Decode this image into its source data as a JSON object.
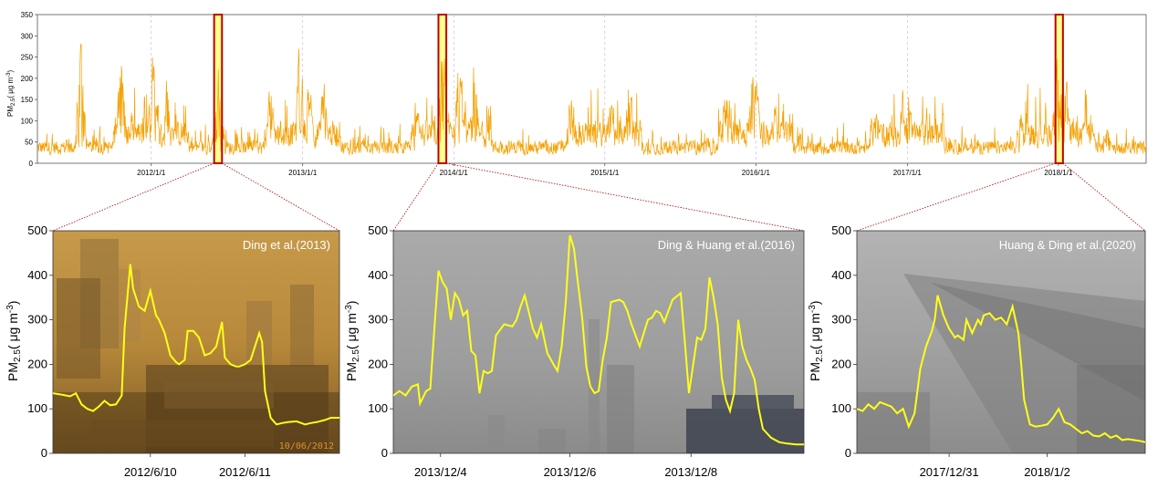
{
  "colors": {
    "series_top": "#f5a000",
    "series_zoom": "#ffff1a",
    "highlight_fill": "#ffff80",
    "highlight_stroke": "#c00000",
    "connector": "#b00000",
    "gridline": "#b8b8e0"
  },
  "chart_data": [
    {
      "type": "line",
      "ylabel": "PM2.5( μg m-3)",
      "ylabel_main": "PM",
      "ylabel_sub": "2.5",
      "ylabel_unit": "( μg m",
      "ylabel_sup": "-3",
      "ylabel_close": ")",
      "ylim": [
        0,
        350
      ],
      "yticks": [
        "0",
        "50",
        "100",
        "150",
        "200",
        "250",
        "300",
        "350"
      ],
      "xlim": [
        "2011-04-01",
        "2018-08-01"
      ],
      "xtick_labels": [
        "2012/1/1",
        "2013/1/1",
        "2014/1/1",
        "2015/1/1",
        "2016/1/1",
        "2017/1/1",
        "2018/1/1"
      ],
      "xticks": [
        "2012-01-01",
        "2013-01-01",
        "2014-01-01",
        "2015-01-01",
        "2016-01-01",
        "2017-01-01",
        "2018-01-01"
      ],
      "grid": "vertical dashed at year starts",
      "highlight_windows": [
        [
          "2012-06-01",
          "2012-06-20"
        ],
        [
          "2013-11-25",
          "2013-12-14"
        ],
        [
          "2017-12-25",
          "2018-01-12"
        ]
      ],
      "peaks": [
        [
          "2011-07-15",
          295
        ],
        [
          "2011-10-20",
          285
        ],
        [
          "2012-01-05",
          280
        ],
        [
          "2012-02-10",
          220
        ],
        [
          "2012-06-10",
          250
        ],
        [
          "2012-10-15",
          200
        ],
        [
          "2012-12-25",
          300
        ],
        [
          "2013-01-15",
          220
        ],
        [
          "2013-02-20",
          210
        ],
        [
          "2013-10-01",
          170
        ],
        [
          "2013-12-06",
          300
        ],
        [
          "2014-01-15",
          280
        ],
        [
          "2014-02-20",
          250
        ],
        [
          "2014-10-10",
          200
        ],
        [
          "2015-01-15",
          160
        ],
        [
          "2015-03-01",
          200
        ],
        [
          "2015-10-20",
          190
        ],
        [
          "2015-12-25",
          230
        ],
        [
          "2016-01-01",
          210
        ],
        [
          "2016-02-15",
          160
        ],
        [
          "2016-10-20",
          150
        ],
        [
          "2016-12-20",
          180
        ],
        [
          "2017-01-05",
          180
        ],
        [
          "2017-10-01",
          130
        ],
        [
          "2018-01-01",
          270
        ],
        [
          "2018-01-20",
          200
        ],
        [
          "2018-03-01",
          110
        ],
        [
          "2018-05-01",
          100
        ]
      ]
    },
    {
      "type": "line",
      "annotation": "Ding et al.(2013)",
      "photo_stamp": "10/06/2012",
      "ylim": [
        0,
        500
      ],
      "yticks": [
        "0",
        "100",
        "200",
        "300",
        "400",
        "500"
      ],
      "xlim": [
        0,
        1
      ],
      "xtick_labels": [
        "2012/6/10",
        "2012/6/11"
      ],
      "xticks": [
        0.34,
        0.67
      ],
      "ylabel_main": "PM",
      "ylabel_sub": "2.5",
      "ylabel_unit": "( μg m",
      "ylabel_sup": "-3",
      "ylabel_close": ")",
      "x": [
        0,
        0.03,
        0.06,
        0.08,
        0.1,
        0.12,
        0.14,
        0.16,
        0.18,
        0.2,
        0.22,
        0.24,
        0.25,
        0.27,
        0.28,
        0.3,
        0.32,
        0.34,
        0.36,
        0.37,
        0.39,
        0.41,
        0.43,
        0.44,
        0.46,
        0.47,
        0.49,
        0.51,
        0.53,
        0.55,
        0.57,
        0.59,
        0.6,
        0.62,
        0.64,
        0.65,
        0.67,
        0.69,
        0.7,
        0.72,
        0.73,
        0.74,
        0.76,
        0.78,
        0.8,
        0.82,
        0.85,
        0.88,
        0.9,
        0.92,
        0.95,
        0.97,
        1.0
      ],
      "y": [
        135,
        132,
        128,
        135,
        110,
        100,
        95,
        105,
        118,
        108,
        110,
        130,
        280,
        425,
        370,
        330,
        320,
        365,
        310,
        300,
        270,
        220,
        205,
        200,
        210,
        275,
        275,
        260,
        220,
        225,
        240,
        295,
        215,
        200,
        195,
        195,
        200,
        210,
        230,
        270,
        250,
        140,
        80,
        65,
        68,
        70,
        72,
        65,
        68,
        70,
        75,
        80,
        80
      ]
    },
    {
      "type": "line",
      "annotation": "Ding & Huang et al.(2016)",
      "ylim": [
        0,
        500
      ],
      "yticks": [
        "0",
        "100",
        "200",
        "300",
        "400",
        "500"
      ],
      "xlim": [
        0,
        1
      ],
      "xtick_labels": [
        "2013/12/4",
        "2013/12/6",
        "2013/12/8"
      ],
      "xticks": [
        0.115,
        0.43,
        0.725
      ],
      "ylabel_main": "PM",
      "ylabel_sub": "2.5",
      "ylabel_unit": "( μg m",
      "ylabel_sup": "-3",
      "ylabel_close": ")",
      "x": [
        0,
        0.015,
        0.03,
        0.045,
        0.06,
        0.065,
        0.08,
        0.09,
        0.1,
        0.11,
        0.12,
        0.13,
        0.14,
        0.15,
        0.16,
        0.17,
        0.18,
        0.19,
        0.2,
        0.21,
        0.22,
        0.23,
        0.24,
        0.25,
        0.27,
        0.29,
        0.3,
        0.31,
        0.32,
        0.34,
        0.35,
        0.36,
        0.375,
        0.39,
        0.4,
        0.41,
        0.42,
        0.43,
        0.44,
        0.45,
        0.46,
        0.47,
        0.48,
        0.49,
        0.5,
        0.51,
        0.52,
        0.53,
        0.55,
        0.56,
        0.57,
        0.58,
        0.6,
        0.62,
        0.63,
        0.64,
        0.65,
        0.66,
        0.68,
        0.7,
        0.71,
        0.72,
        0.74,
        0.75,
        0.76,
        0.77,
        0.78,
        0.79,
        0.8,
        0.81,
        0.82,
        0.83,
        0.84,
        0.85,
        0.86,
        0.87,
        0.88,
        0.89,
        0.9,
        0.92,
        0.94,
        0.96,
        0.98,
        1.0
      ],
      "y": [
        130,
        140,
        130,
        150,
        155,
        112,
        140,
        145,
        280,
        410,
        385,
        370,
        300,
        360,
        345,
        310,
        320,
        230,
        220,
        135,
        185,
        180,
        185,
        265,
        290,
        285,
        300,
        330,
        355,
        280,
        260,
        290,
        225,
        200,
        185,
        240,
        340,
        490,
        460,
        380,
        305,
        195,
        150,
        135,
        140,
        210,
        260,
        340,
        345,
        340,
        320,
        290,
        240,
        300,
        305,
        320,
        315,
        295,
        345,
        360,
        250,
        135,
        260,
        255,
        280,
        395,
        350,
        290,
        170,
        120,
        95,
        135,
        300,
        240,
        210,
        190,
        165,
        100,
        55,
        35,
        25,
        22,
        20,
        20
      ]
    },
    {
      "type": "line",
      "annotation": "Huang & Ding et al.(2020)",
      "ylim": [
        0,
        500
      ],
      "yticks": [
        "0",
        "100",
        "200",
        "300",
        "400",
        "500"
      ],
      "xlim": [
        0,
        1
      ],
      "xtick_labels": [
        "2017/12/31",
        "2018/1/2"
      ],
      "xticks": [
        0.32,
        0.66
      ],
      "ylabel_main": "PM",
      "ylabel_sub": "2.5",
      "ylabel_unit": "( μg m",
      "ylabel_sup": "-3",
      "ylabel_close": ")",
      "x": [
        0,
        0.02,
        0.04,
        0.06,
        0.08,
        0.1,
        0.12,
        0.14,
        0.16,
        0.18,
        0.2,
        0.22,
        0.24,
        0.26,
        0.27,
        0.28,
        0.3,
        0.32,
        0.34,
        0.35,
        0.37,
        0.38,
        0.4,
        0.42,
        0.43,
        0.44,
        0.46,
        0.48,
        0.5,
        0.52,
        0.54,
        0.56,
        0.57,
        0.58,
        0.6,
        0.62,
        0.64,
        0.66,
        0.68,
        0.7,
        0.72,
        0.74,
        0.76,
        0.78,
        0.8,
        0.82,
        0.84,
        0.86,
        0.88,
        0.9,
        0.92,
        0.94,
        0.96,
        0.98,
        1.0
      ],
      "y": [
        100,
        95,
        110,
        100,
        115,
        110,
        105,
        90,
        100,
        60,
        90,
        190,
        240,
        275,
        300,
        355,
        310,
        280,
        260,
        265,
        255,
        300,
        270,
        300,
        290,
        310,
        315,
        300,
        305,
        290,
        330,
        270,
        200,
        120,
        65,
        60,
        62,
        65,
        80,
        100,
        70,
        65,
        55,
        45,
        50,
        40,
        38,
        45,
        35,
        40,
        30,
        32,
        30,
        28,
        25
      ]
    }
  ]
}
